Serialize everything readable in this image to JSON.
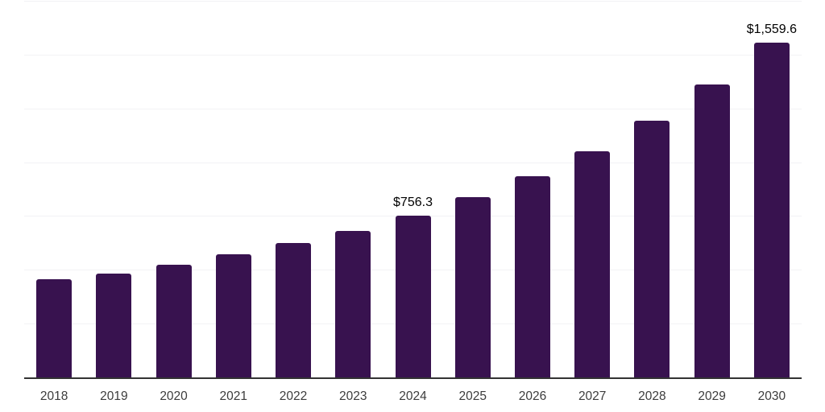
{
  "chart_data": {
    "type": "bar",
    "title": "",
    "xlabel": "",
    "ylabel": "",
    "categories": [
      "2018",
      "2019",
      "2020",
      "2021",
      "2022",
      "2023",
      "2024",
      "2025",
      "2026",
      "2027",
      "2028",
      "2029",
      "2030"
    ],
    "values": [
      458.4,
      486.1,
      527.3,
      574.2,
      628.0,
      684.0,
      756.3,
      840.9,
      938.0,
      1054.9,
      1195.6,
      1364.8,
      1559.6
    ],
    "data_labels": {
      "2024": "$756.3",
      "2030": "$1,559.6"
    },
    "ylim": [
      0,
      1750
    ],
    "gridline_interval": 250,
    "grid": "horizontal-only",
    "legend_position": "none",
    "colors": {
      "bar": "#38124f",
      "gridline": "#f2f2f5",
      "axis_line": "#333333",
      "tick_label": "#3c3c3c",
      "data_label": "#000000",
      "background": "#ffffff"
    }
  }
}
